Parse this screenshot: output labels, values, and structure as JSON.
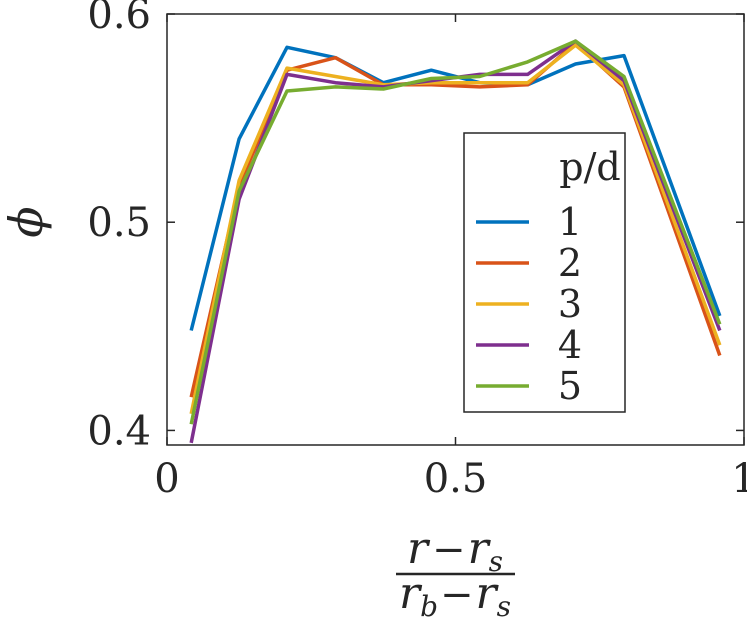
{
  "chart_data": {
    "type": "line",
    "xlabel": {
      "num_main": "r",
      "num_minus": "−",
      "num_main2": "r",
      "num_sub2": "s",
      "den_main": "r",
      "den_sub": "b",
      "den_minus": "−",
      "den_main2": "r",
      "den_sub2": "s"
    },
    "ylabel": "ϕ",
    "xlim": [
      0,
      1
    ],
    "ylim": [
      0.393,
      0.6
    ],
    "xticks": [
      {
        "v": 0,
        "label": "0"
      },
      {
        "v": 0.5,
        "label": "0.5"
      },
      {
        "v": 1,
        "label": "1"
      }
    ],
    "yticks": [
      {
        "v": 0.4,
        "label": "0.4"
      },
      {
        "v": 0.5,
        "label": "0.5"
      },
      {
        "v": 0.6,
        "label": "0.6"
      }
    ],
    "x": [
      0.042,
      0.125,
      0.208,
      0.292,
      0.375,
      0.458,
      0.542,
      0.625,
      0.708,
      0.792,
      0.958
    ],
    "legend": {
      "title": "p/d",
      "placement": "right"
    },
    "series": [
      {
        "name": "1",
        "color": "#0072BD",
        "values": [
          0.448,
          0.54,
          0.584,
          0.579,
          0.567,
          0.573,
          0.567,
          0.566,
          0.576,
          0.58,
          0.455
        ]
      },
      {
        "name": "2",
        "color": "#D95319",
        "values": [
          0.416,
          0.517,
          0.573,
          0.579,
          0.566,
          0.566,
          0.565,
          0.566,
          0.586,
          0.565,
          0.436
        ]
      },
      {
        "name": "3",
        "color": "#EDB120",
        "values": [
          0.408,
          0.52,
          0.574,
          0.57,
          0.566,
          0.567,
          0.567,
          0.567,
          0.585,
          0.566,
          0.441
        ]
      },
      {
        "name": "4",
        "color": "#7E2F8E",
        "values": [
          0.394,
          0.511,
          0.571,
          0.567,
          0.565,
          0.568,
          0.571,
          0.571,
          0.587,
          0.568,
          0.448
        ]
      },
      {
        "name": "5",
        "color": "#77AC30",
        "values": [
          0.403,
          0.515,
          0.563,
          0.565,
          0.564,
          0.569,
          0.57,
          0.577,
          0.587,
          0.57,
          0.451
        ]
      }
    ]
  }
}
